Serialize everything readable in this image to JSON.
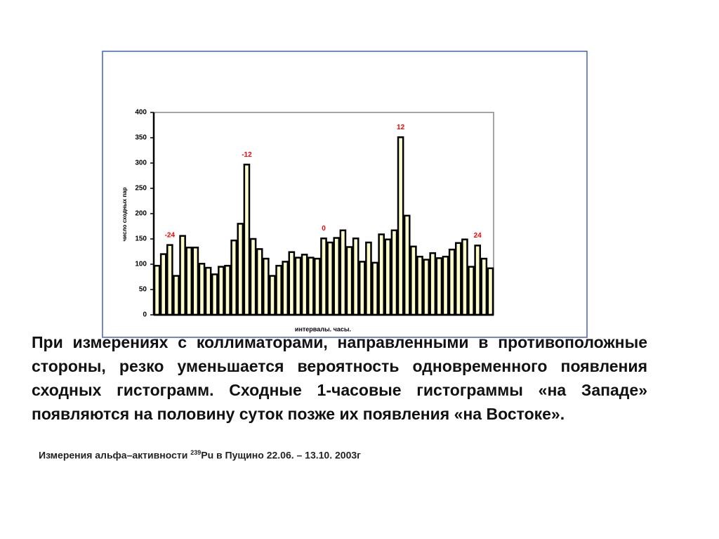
{
  "chart_data": {
    "type": "bar",
    "ylabel": "число сходных пар",
    "xlabel": "интервалы. часы.",
    "values": [
      97,
      120,
      138,
      77,
      156,
      133,
      133,
      101,
      93,
      80,
      95,
      97,
      147,
      180,
      297,
      150,
      130,
      111,
      77,
      97,
      105,
      124,
      113,
      119,
      113,
      111,
      151,
      143,
      152,
      167,
      134,
      151,
      105,
      143,
      103,
      159,
      149,
      167,
      351,
      196,
      135,
      115,
      109,
      122,
      112,
      115,
      129,
      142,
      149,
      95,
      137,
      111,
      92
    ],
    "color": "#ffffcc",
    "ylim": [
      0,
      400
    ],
    "yticks": [
      0,
      50,
      100,
      150,
      200,
      250,
      300,
      350,
      400
    ],
    "annotations": [
      {
        "text": "-24",
        "bar": 2
      },
      {
        "text": "-12",
        "bar": 14
      },
      {
        "text": "0",
        "bar": 26
      },
      {
        "text": "12",
        "bar": 38
      },
      {
        "text": "24",
        "bar": 50
      }
    ],
    "annotation_color": "#ff0000"
  },
  "slide": {
    "paragraph": "При измерениях с коллиматорами, направленными в противоположные стороны, резко уменьшается вероятность одновременного появления сходных гистограмм. Сходные 1-часовые гистограммы «на Западе» появляются на половину суток  позже их появления «на Востоке».",
    "caption": {
      "before": "Измерения альфа–активности ",
      "sup": "239",
      "after": "Pu в Пущино 22.06. – 13.10. 2003г"
    }
  }
}
